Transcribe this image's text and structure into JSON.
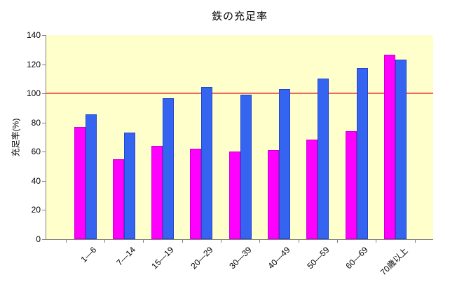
{
  "chart_data": {
    "type": "bar",
    "title": "鉄の充足率",
    "ylabel": "充足率(%)",
    "xlabel": "",
    "categories": [
      "1—6",
      "7—14",
      "15—19",
      "20—29",
      "30—39",
      "40—49",
      "50—59",
      "60—69",
      "70歳以上"
    ],
    "series": [
      {
        "name": "magenta",
        "color": "#FF00FF",
        "border_color": "#CC00CC",
        "values": [
          77,
          55,
          64,
          62,
          60,
          61,
          68.5,
          74,
          126.5
        ]
      },
      {
        "name": "blue",
        "color": "#3565F0",
        "border_color": "#2244CC",
        "values": [
          85.5,
          73,
          96.5,
          104.5,
          99,
          103,
          110,
          117.5,
          123
        ]
      }
    ],
    "y_ticks": [
      0,
      20,
      40,
      60,
      80,
      100,
      120,
      140
    ],
    "ylim": [
      0,
      140
    ],
    "reference_line": {
      "value": 100,
      "color": "#EE6A5A"
    },
    "plot_bg": "#FFFFCC",
    "axis_color": "#808080",
    "grid": false,
    "legend_position": "none"
  }
}
